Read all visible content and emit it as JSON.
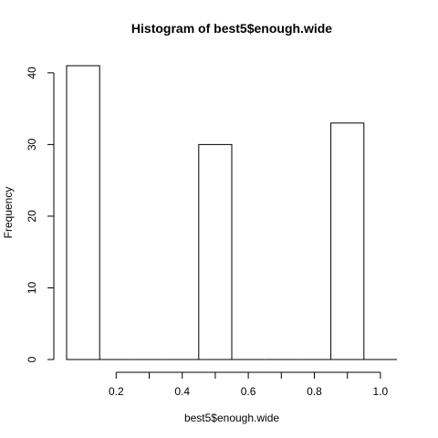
{
  "chart_data": {
    "type": "bar",
    "title": "Histogram of best5$enough.wide",
    "xlabel": "best5$enough.wide",
    "ylabel": "Frequency",
    "bins": [
      [
        0.05,
        0.15
      ],
      [
        0.15,
        0.25
      ],
      [
        0.25,
        0.35
      ],
      [
        0.35,
        0.45
      ],
      [
        0.45,
        0.55
      ],
      [
        0.55,
        0.65
      ],
      [
        0.65,
        0.75
      ],
      [
        0.75,
        0.85
      ],
      [
        0.85,
        0.95
      ],
      [
        0.95,
        1.05
      ]
    ],
    "values": [
      41,
      0,
      0,
      0,
      30,
      0,
      0,
      0,
      33,
      0
    ],
    "xlim": [
      0.05,
      1.05
    ],
    "ylim": [
      0,
      42
    ],
    "xticks": [
      0.2,
      0.4,
      0.6,
      0.8,
      1.0
    ],
    "xtick_labels": [
      "0.2",
      "0.4",
      "0.6",
      "0.8",
      "1.0"
    ],
    "yticks": [
      0,
      10,
      20,
      30,
      40
    ],
    "ytick_labels": [
      "0",
      "10",
      "20",
      "30",
      "40"
    ],
    "grid": false
  }
}
